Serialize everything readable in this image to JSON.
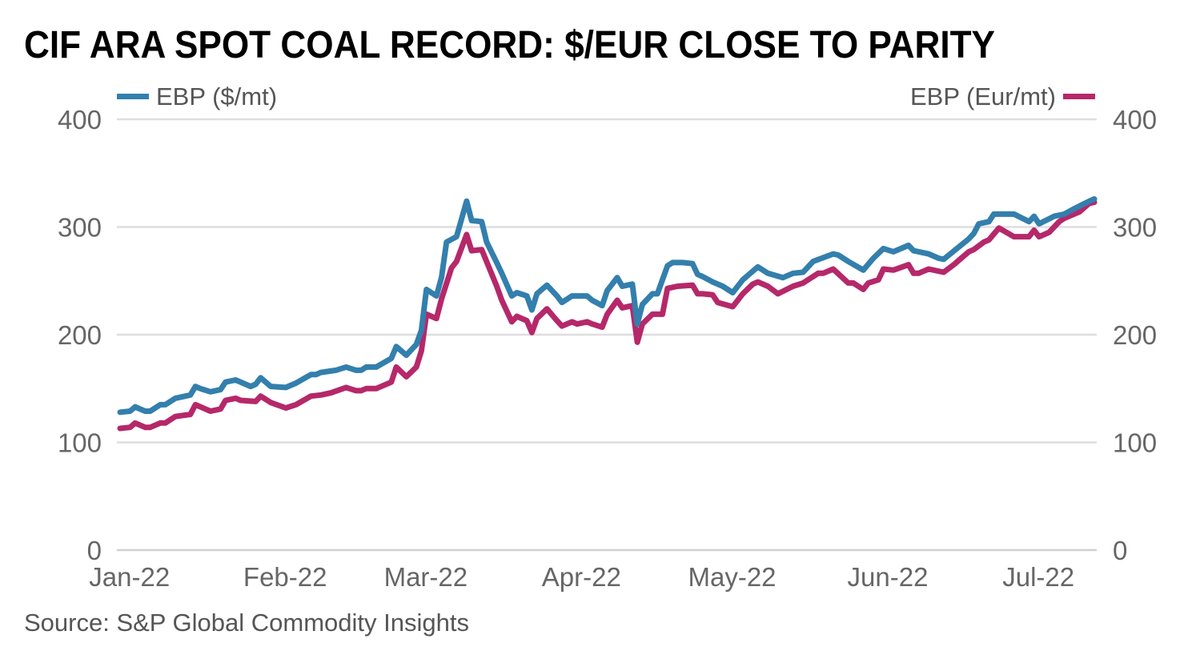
{
  "chart_data": {
    "type": "line",
    "title": "CIF ARA SPOT COAL RECORD: $/EUR CLOSE TO PARITY",
    "source": "Source: S&P Global Commodity Insights",
    "x_unit": "day of year 2022",
    "xlim": [
      2,
      196
    ],
    "ylim": [
      0,
      400
    ],
    "grid": true,
    "y_ticks": [
      0,
      100,
      200,
      300,
      400
    ],
    "y_tick_labels": [
      "0",
      "100",
      "200",
      "300",
      "400"
    ],
    "x_ticks": [
      1,
      32,
      60,
      91,
      121,
      152,
      182
    ],
    "x_tick_labels": [
      "Jan-22",
      "Feb-22",
      "Mar-22",
      "Apr-22",
      "May-22",
      "Jun-22",
      "Jul-22"
    ],
    "legend": {
      "left": "EBP ($/mt)",
      "right": "EBP (Eur/mt)"
    },
    "series": [
      {
        "name": "EBP ($/mt)",
        "axis": "left",
        "color": "#337fad",
        "points": [
          [
            2,
            128
          ],
          [
            4,
            129
          ],
          [
            5,
            133
          ],
          [
            7,
            129
          ],
          [
            8,
            129
          ],
          [
            10,
            135
          ],
          [
            11,
            135
          ],
          [
            13,
            141
          ],
          [
            16,
            144
          ],
          [
            17,
            152
          ],
          [
            18,
            150
          ],
          [
            20,
            147
          ],
          [
            22,
            149
          ],
          [
            23,
            156
          ],
          [
            25,
            158
          ],
          [
            28,
            152
          ],
          [
            29,
            154
          ],
          [
            30,
            160
          ],
          [
            32,
            152
          ],
          [
            35,
            151
          ],
          [
            37,
            155
          ],
          [
            40,
            163
          ],
          [
            41,
            163
          ],
          [
            42,
            165
          ],
          [
            45,
            167
          ],
          [
            47,
            170
          ],
          [
            49,
            167
          ],
          [
            50,
            167
          ],
          [
            51,
            170
          ],
          [
            53,
            170
          ],
          [
            56,
            178
          ],
          [
            57,
            189
          ],
          [
            59,
            181
          ],
          [
            61,
            191
          ],
          [
            62,
            204
          ],
          [
            63,
            242
          ],
          [
            65,
            236
          ],
          [
            66,
            253
          ],
          [
            67,
            286
          ],
          [
            69,
            291
          ],
          [
            71,
            324
          ],
          [
            72,
            306
          ],
          [
            74,
            305
          ],
          [
            75,
            286
          ],
          [
            77,
            267
          ],
          [
            78,
            257
          ],
          [
            80,
            236
          ],
          [
            81,
            239
          ],
          [
            83,
            236
          ],
          [
            84,
            223
          ],
          [
            85,
            238
          ],
          [
            87,
            246
          ],
          [
            89,
            236
          ],
          [
            90,
            230
          ],
          [
            92,
            236
          ],
          [
            93,
            236
          ],
          [
            95,
            236
          ],
          [
            96,
            232
          ],
          [
            98,
            227
          ],
          [
            99,
            241
          ],
          [
            101,
            253
          ],
          [
            102,
            245
          ],
          [
            104,
            247
          ],
          [
            105,
            210
          ],
          [
            106,
            228
          ],
          [
            108,
            238
          ],
          [
            109,
            238
          ],
          [
            111,
            264
          ],
          [
            112,
            267
          ],
          [
            114,
            267
          ],
          [
            116,
            266
          ],
          [
            117,
            256
          ],
          [
            118,
            254
          ],
          [
            120,
            249
          ],
          [
            122,
            245
          ],
          [
            124,
            239
          ],
          [
            126,
            251
          ],
          [
            128,
            259
          ],
          [
            129,
            263
          ],
          [
            131,
            257
          ],
          [
            134,
            253
          ],
          [
            136,
            257
          ],
          [
            138,
            258
          ],
          [
            140,
            268
          ],
          [
            144,
            275
          ],
          [
            145,
            274
          ],
          [
            147,
            268
          ],
          [
            150,
            260
          ],
          [
            152,
            271
          ],
          [
            154,
            280
          ],
          [
            156,
            277
          ],
          [
            159,
            283
          ],
          [
            160,
            278
          ],
          [
            163,
            275
          ],
          [
            165,
            271
          ],
          [
            166,
            270
          ],
          [
            171,
            289
          ],
          [
            172,
            294
          ],
          [
            173,
            303
          ],
          [
            175,
            305
          ],
          [
            176,
            312
          ],
          [
            180,
            312
          ],
          [
            183,
            305
          ],
          [
            184,
            310
          ],
          [
            185,
            303
          ],
          [
            188,
            310
          ],
          [
            190,
            312
          ],
          [
            192,
            317
          ],
          [
            195,
            324
          ],
          [
            196,
            326
          ]
        ]
      },
      {
        "name": "EBP (Eur/mt)",
        "axis": "right",
        "color": "#b5286a",
        "points": [
          [
            2,
            113
          ],
          [
            4,
            114
          ],
          [
            5,
            118
          ],
          [
            7,
            114
          ],
          [
            8,
            114
          ],
          [
            10,
            118
          ],
          [
            11,
            118
          ],
          [
            13,
            124
          ],
          [
            16,
            126
          ],
          [
            17,
            135
          ],
          [
            20,
            129
          ],
          [
            22,
            131
          ],
          [
            23,
            139
          ],
          [
            25,
            141
          ],
          [
            26,
            139
          ],
          [
            29,
            138
          ],
          [
            30,
            143
          ],
          [
            32,
            137
          ],
          [
            35,
            132
          ],
          [
            37,
            135
          ],
          [
            40,
            143
          ],
          [
            42,
            144
          ],
          [
            44,
            146
          ],
          [
            47,
            151
          ],
          [
            49,
            148
          ],
          [
            50,
            148
          ],
          [
            51,
            150
          ],
          [
            53,
            150
          ],
          [
            56,
            156
          ],
          [
            57,
            170
          ],
          [
            59,
            161
          ],
          [
            61,
            170
          ],
          [
            62,
            185
          ],
          [
            63,
            219
          ],
          [
            65,
            215
          ],
          [
            66,
            233
          ],
          [
            68,
            262
          ],
          [
            69,
            268
          ],
          [
            71,
            293
          ],
          [
            72,
            278
          ],
          [
            74,
            279
          ],
          [
            77,
            245
          ],
          [
            78,
            232
          ],
          [
            80,
            212
          ],
          [
            81,
            217
          ],
          [
            83,
            213
          ],
          [
            84,
            202
          ],
          [
            85,
            215
          ],
          [
            87,
            224
          ],
          [
            89,
            213
          ],
          [
            90,
            208
          ],
          [
            92,
            212
          ],
          [
            93,
            210
          ],
          [
            95,
            212
          ],
          [
            96,
            210
          ],
          [
            98,
            207
          ],
          [
            99,
            219
          ],
          [
            101,
            232
          ],
          [
            102,
            225
          ],
          [
            104,
            227
          ],
          [
            105,
            193
          ],
          [
            106,
            210
          ],
          [
            108,
            219
          ],
          [
            110,
            219
          ],
          [
            111,
            243
          ],
          [
            113,
            245
          ],
          [
            116,
            246
          ],
          [
            117,
            238
          ],
          [
            118,
            238
          ],
          [
            120,
            237
          ],
          [
            121,
            230
          ],
          [
            124,
            226
          ],
          [
            126,
            238
          ],
          [
            128,
            247
          ],
          [
            129,
            249
          ],
          [
            131,
            245
          ],
          [
            133,
            238
          ],
          [
            136,
            245
          ],
          [
            138,
            248
          ],
          [
            141,
            257
          ],
          [
            142,
            257
          ],
          [
            144,
            261
          ],
          [
            147,
            248
          ],
          [
            148,
            248
          ],
          [
            150,
            242
          ],
          [
            151,
            248
          ],
          [
            153,
            251
          ],
          [
            154,
            261
          ],
          [
            156,
            260
          ],
          [
            159,
            265
          ],
          [
            160,
            257
          ],
          [
            161,
            257
          ],
          [
            163,
            261
          ],
          [
            166,
            258
          ],
          [
            168,
            265
          ],
          [
            169,
            269
          ],
          [
            171,
            277
          ],
          [
            172,
            279
          ],
          [
            174,
            286
          ],
          [
            175,
            288
          ],
          [
            177,
            299
          ],
          [
            180,
            291
          ],
          [
            183,
            291
          ],
          [
            184,
            297
          ],
          [
            185,
            291
          ],
          [
            187,
            295
          ],
          [
            189,
            305
          ],
          [
            190,
            308
          ],
          [
            193,
            314
          ],
          [
            195,
            322
          ],
          [
            196,
            323
          ]
        ]
      }
    ]
  }
}
